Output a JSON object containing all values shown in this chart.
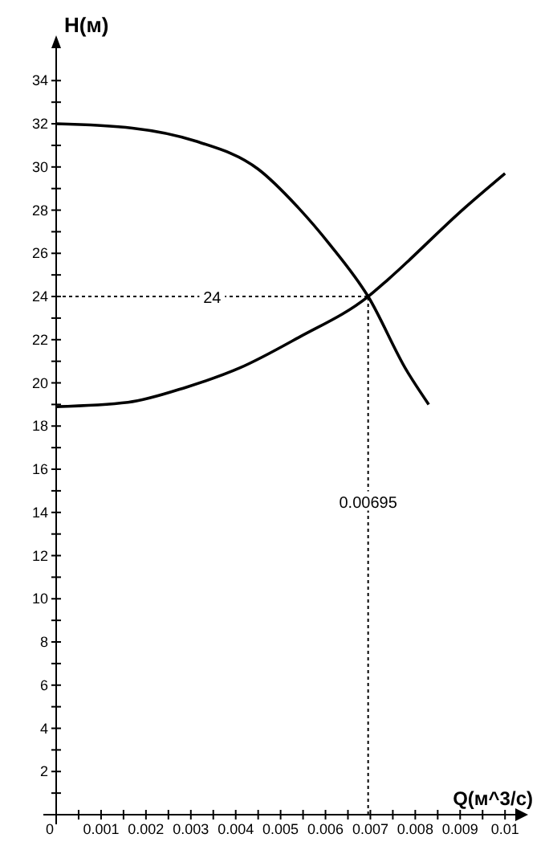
{
  "chart_data": {
    "type": "line",
    "xlabel": "Q(м^3/с)",
    "ylabel": "H(м)",
    "xlim": [
      0,
      0.0103
    ],
    "ylim": [
      0,
      35.5
    ],
    "xticks": [
      {
        "value": 0,
        "label": "0"
      },
      {
        "value": 0.0005,
        "label": null
      },
      0.001,
      {
        "value": 0.0015,
        "label": null
      },
      0.002,
      {
        "value": 0.0025,
        "label": null
      },
      0.003,
      {
        "value": 0.0035,
        "label": null
      },
      0.004,
      {
        "value": 0.0045,
        "label": null
      },
      0.005,
      {
        "value": 0.0055,
        "label": null
      },
      0.006,
      {
        "value": 0.0065,
        "label": null
      },
      0.007,
      {
        "value": 0.0075,
        "label": null
      },
      0.008,
      {
        "value": 0.0085,
        "label": null
      },
      0.009,
      {
        "value": 0.0095,
        "label": null
      },
      0.01
    ],
    "yticks": [
      {
        "value": 1,
        "label": null
      },
      2,
      {
        "value": 3,
        "label": null
      },
      4,
      {
        "value": 5,
        "label": null
      },
      6,
      {
        "value": 7,
        "label": null
      },
      8,
      {
        "value": 9,
        "label": null
      },
      10,
      {
        "value": 11,
        "label": null
      },
      12,
      {
        "value": 13,
        "label": null
      },
      14,
      {
        "value": 15,
        "label": null
      },
      16,
      {
        "value": 17,
        "label": null
      },
      18,
      {
        "value": 19,
        "label": null
      },
      20,
      {
        "value": 21,
        "label": null
      },
      22,
      {
        "value": 23,
        "label": null
      },
      24,
      {
        "value": 25,
        "label": null
      },
      26,
      {
        "value": 27,
        "label": null
      },
      28,
      {
        "value": 29,
        "label": null
      },
      30,
      {
        "value": 31,
        "label": null
      },
      32,
      {
        "value": 33,
        "label": null
      },
      34
    ],
    "grid": false,
    "marker": "none",
    "line_style": "solid",
    "series": [
      {
        "color": "#000000",
        "x": [
          0,
          0.0017,
          0.0031,
          0.0045,
          0.0054,
          0.0061,
          0.00695,
          0.0078,
          0.0083
        ],
        "values": [
          32,
          31.8,
          31.2,
          29.9,
          28.1,
          26.4,
          24,
          20.6,
          19
        ]
      },
      {
        "color": "#000000",
        "x": [
          0,
          0.0016,
          0.0029,
          0.0041,
          0.0054,
          0.00695,
          0.0074,
          0.0091,
          0.01
        ],
        "values": [
          18.9,
          19.1,
          19.8,
          20.7,
          22.1,
          24,
          24.8,
          28.1,
          29.7
        ]
      }
    ],
    "ref_lines": [
      {
        "axis": "y",
        "value": 24,
        "label": "24",
        "line_style": "dotted",
        "color": "#000000"
      },
      {
        "axis": "x",
        "value": 0.00695,
        "label": "0.00695",
        "line_style": "dotted",
        "color": "#000000"
      }
    ]
  }
}
